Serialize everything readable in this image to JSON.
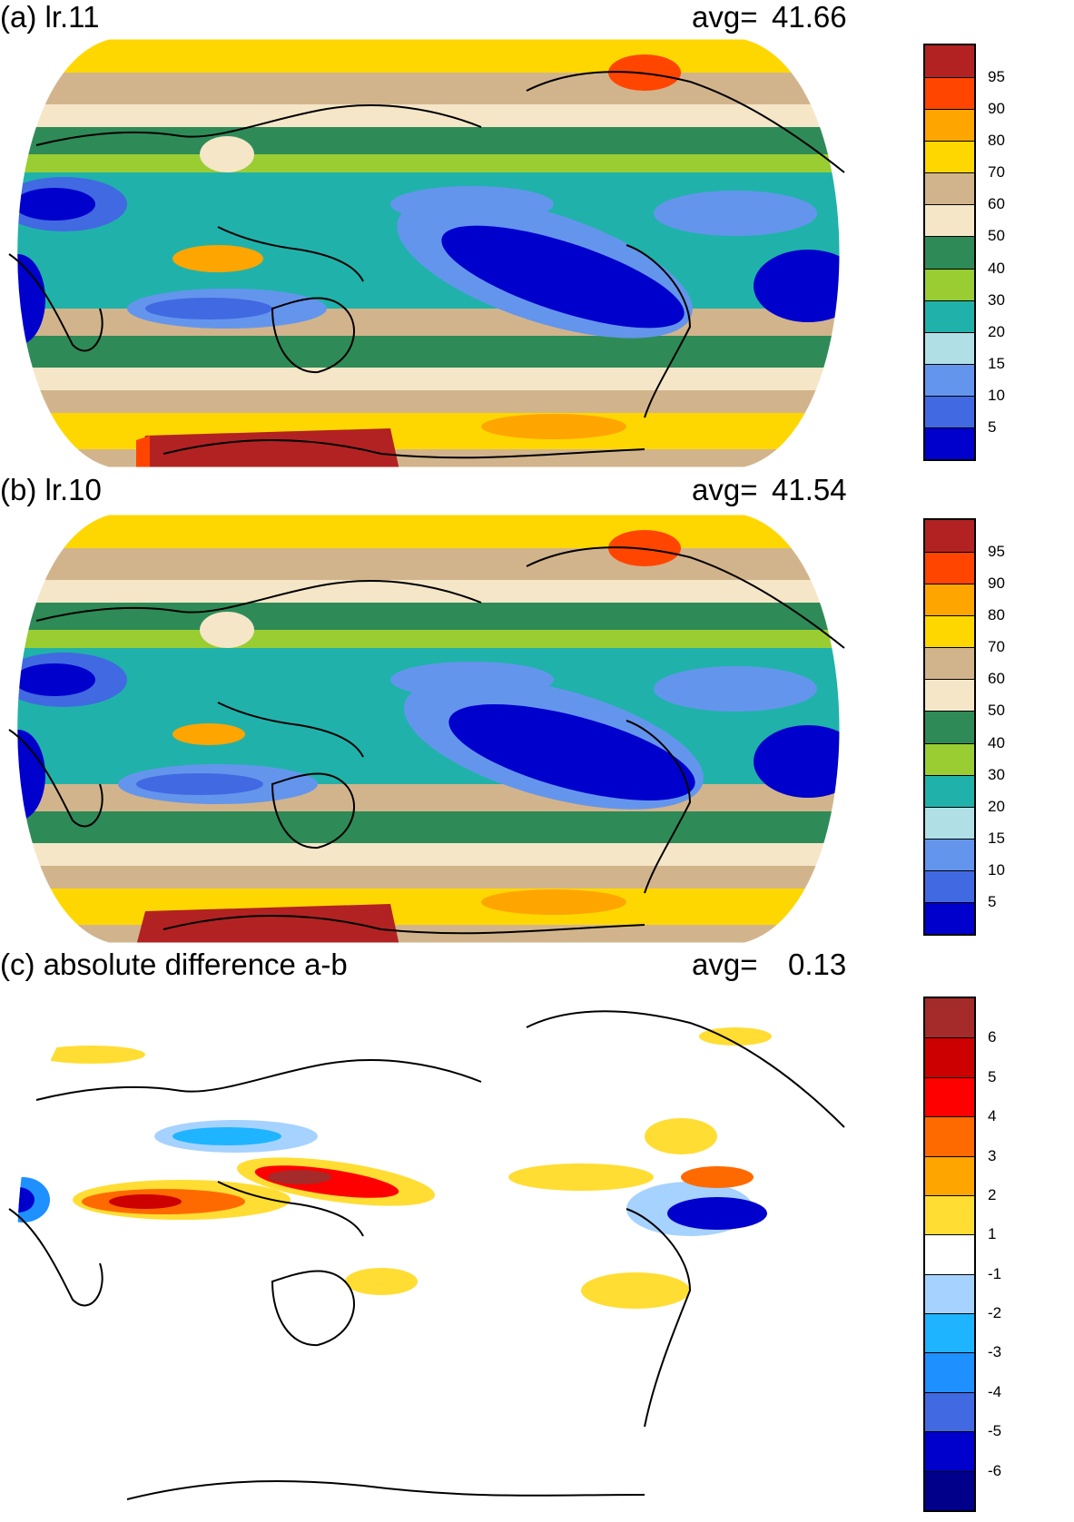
{
  "panels": [
    {
      "title": "(a) lr.11",
      "avg_label": "avg=",
      "avg_value": "41.66",
      "colorbar": {
        "labels": [
          "95",
          "90",
          "80",
          "70",
          "60",
          "50",
          "40",
          "30",
          "20",
          "15",
          "10",
          "5"
        ],
        "colors": [
          "#b22222",
          "#ff4500",
          "#ffa500",
          "#ffd700",
          "#d2b48c",
          "#f5e6c8",
          "#2e8b57",
          "#9acd32",
          "#20b2aa",
          "#b0e0e6",
          "#6495ed",
          "#4169e1",
          "#0000cd"
        ]
      }
    },
    {
      "title": "(b) lr.10",
      "avg_label": "avg=",
      "avg_value": "41.54",
      "colorbar": {
        "labels": [
          "95",
          "90",
          "80",
          "70",
          "60",
          "50",
          "40",
          "30",
          "20",
          "15",
          "10",
          "5"
        ],
        "colors": [
          "#b22222",
          "#ff4500",
          "#ffa500",
          "#ffd700",
          "#d2b48c",
          "#f5e6c8",
          "#2e8b57",
          "#9acd32",
          "#20b2aa",
          "#b0e0e6",
          "#6495ed",
          "#4169e1",
          "#0000cd"
        ]
      }
    },
    {
      "title": "(c) absolute difference a-b",
      "avg_label": "avg=",
      "avg_value": "0.13",
      "colorbar": {
        "labels": [
          "6",
          "5",
          "4",
          "3",
          "2",
          "1",
          "-1",
          "-2",
          "-3",
          "-4",
          "-5",
          "-6"
        ],
        "colors": [
          "#a52a2a",
          "#cd0000",
          "#ff0000",
          "#ff6a00",
          "#ffa500",
          "#ffdd33",
          "#ffffff",
          "#a6d2ff",
          "#1eb4ff",
          "#1e90ff",
          "#4169e1",
          "#0000cd",
          "#00008b"
        ]
      }
    }
  ]
}
